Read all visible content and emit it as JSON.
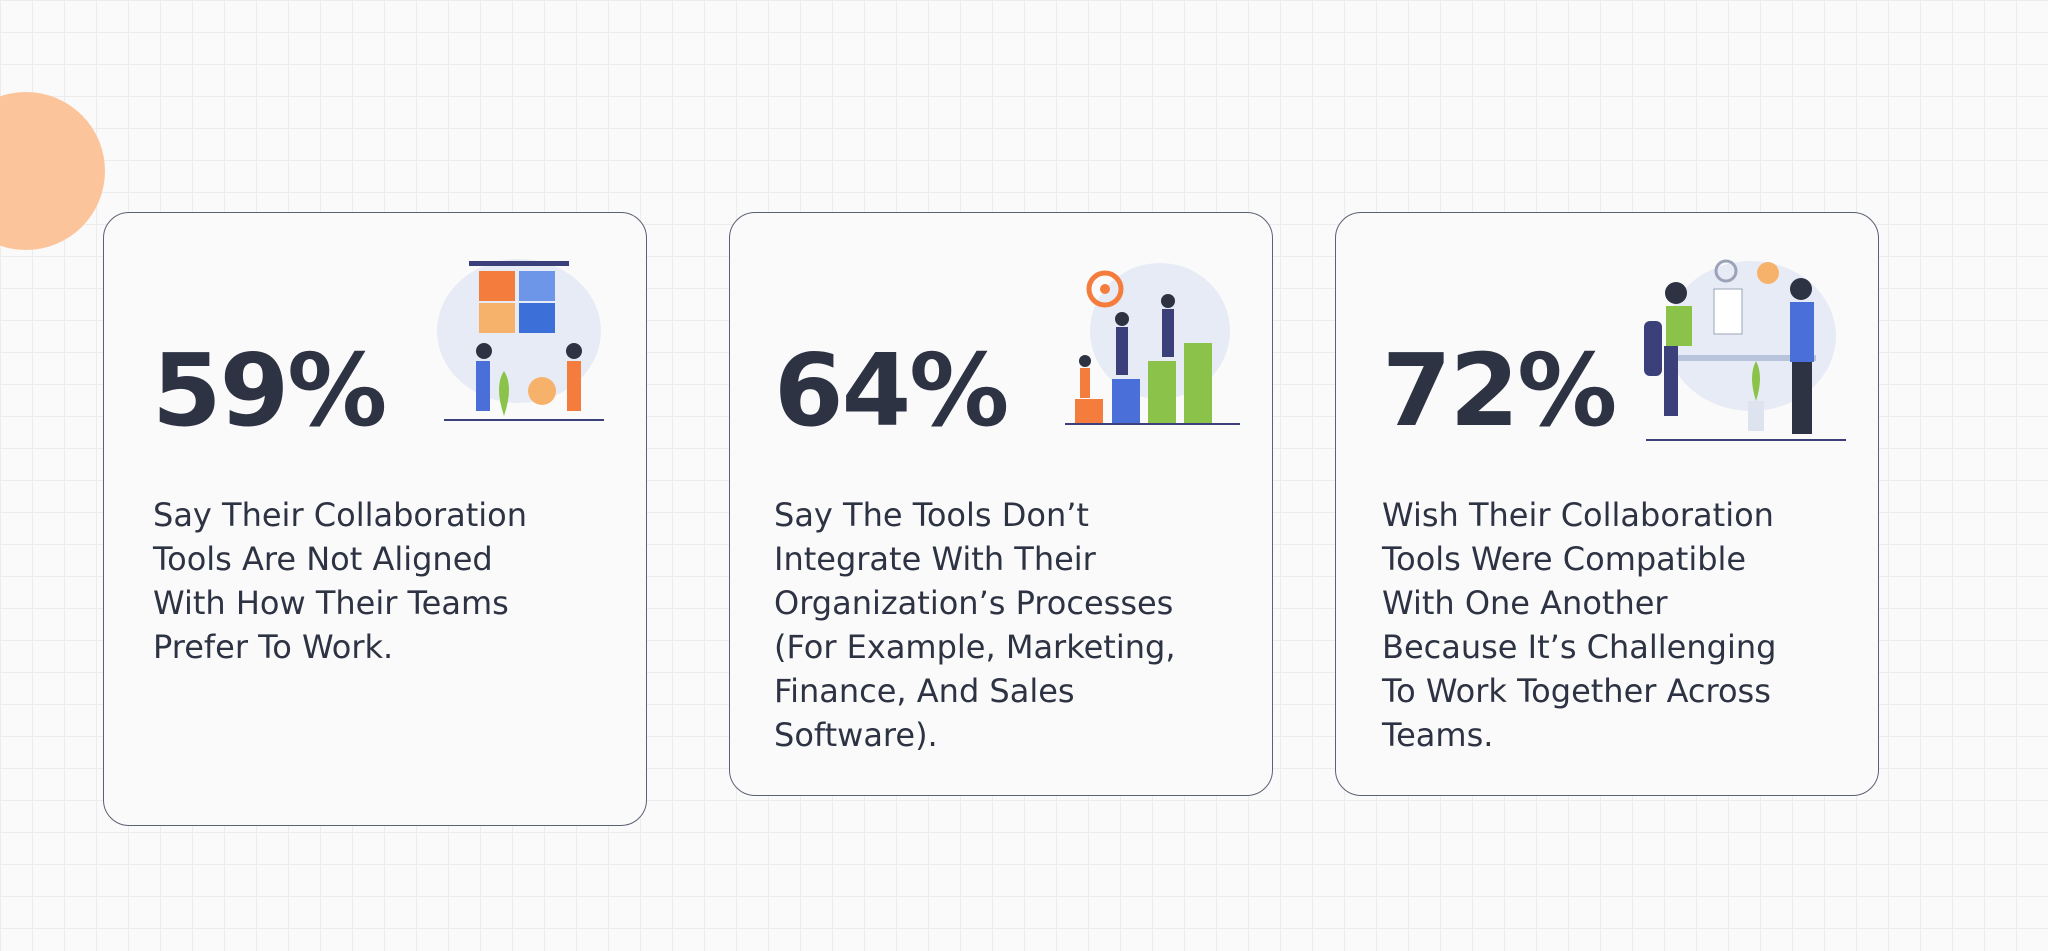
{
  "cards": [
    {
      "stat": "59%",
      "description_lines": [
        "Say Their Collaboration",
        "Tools Are Not Aligned",
        "With How Their Teams",
        "Prefer To Work."
      ]
    },
    {
      "stat": "64%",
      "description_lines": [
        "Say The Tools Don’t",
        "Integrate With Their",
        "Organization’s Processes",
        "(For Example, Marketing,",
        "Finance, And Sales",
        "Software)."
      ]
    },
    {
      "stat": "72%",
      "description_lines": [
        "Wish Their Collaboration",
        "Tools Were Compatible",
        "With One Another",
        "Because It’s Challenging",
        "To Work Together Across",
        "Teams."
      ]
    }
  ]
}
